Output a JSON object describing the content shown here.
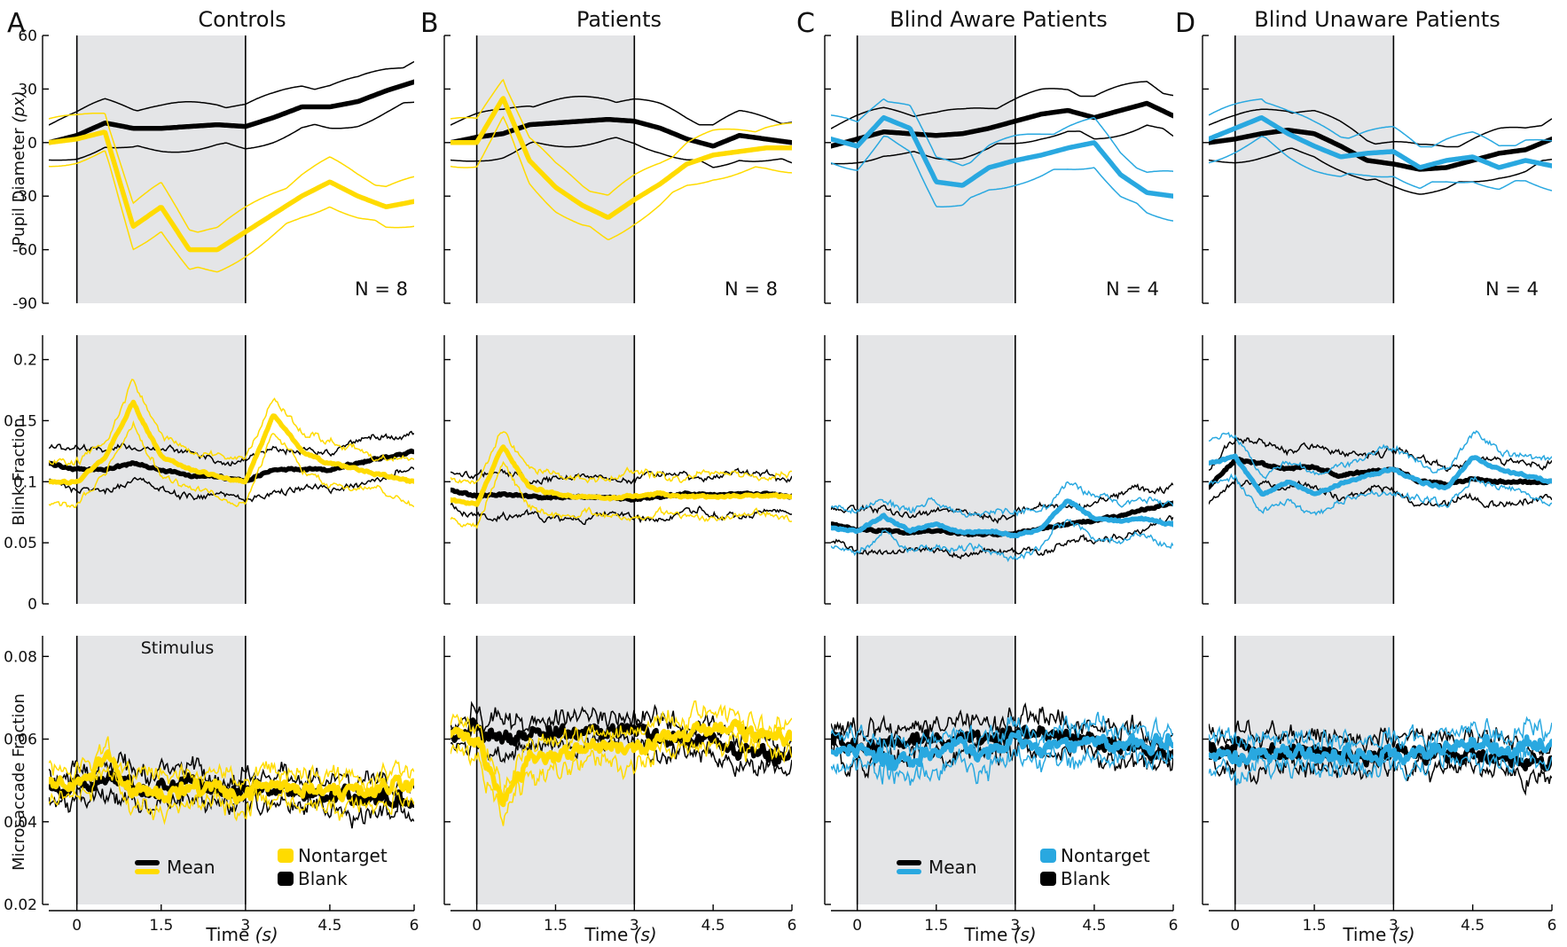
{
  "figure": {
    "colors": {
      "control": "#ffdb00",
      "patient": "#ffdb00",
      "aware": "#29a8e0",
      "unaware": "#29a8e0",
      "blank": "#000000",
      "stim_shade": "#e4e5e7"
    },
    "x_label": "Time",
    "x_unit": "(s)",
    "x_ticks": [
      "0",
      "1.5",
      "3",
      "4.5",
      "6"
    ],
    "stimulus_label": "Stimulus",
    "legend": {
      "mean": "Mean",
      "nontarget": "Nontarget",
      "blank": "Blank"
    }
  },
  "panels": [
    {
      "letter": "A",
      "title": "Controls",
      "n_label": "N = 8",
      "color": "#ffdb00"
    },
    {
      "letter": "B",
      "title": "Patients",
      "n_label": "N = 8",
      "color": "#ffdb00"
    },
    {
      "letter": "C",
      "title": "Blind Aware Patients",
      "n_label": "N = 4",
      "color": "#29a8e0"
    },
    {
      "letter": "D",
      "title": "Blind Unaware Patients",
      "n_label": "N = 4",
      "color": "#29a8e0"
    }
  ],
  "rows": [
    {
      "ylabel": "Pupil Diameter",
      "yunit": "(px)",
      "ylim": [
        -90,
        60
      ],
      "ticks": [
        "60",
        "30",
        "0",
        "-30",
        "-60",
        "-90"
      ]
    },
    {
      "ylabel": "Blink Fraction",
      "yunit": "",
      "ylim": [
        0,
        0.22
      ],
      "ticks": [
        "0.2",
        "0.15",
        "0.1",
        "0.05",
        "0"
      ]
    },
    {
      "ylabel": "Microsaccade Fraction",
      "yunit": "",
      "ylim": [
        0.02,
        0.085
      ],
      "ticks": [
        "0.08",
        "0.06",
        "0.04",
        "0.02"
      ]
    }
  ],
  "chart_data": [
    {
      "type": "line",
      "panel": "A",
      "metric": "Pupil Diameter (px)",
      "xlim": [
        -0.5,
        6
      ],
      "ylim": [
        -90,
        60
      ],
      "stimulus": [
        0,
        3
      ],
      "x": [
        -0.5,
        0,
        0.5,
        1,
        1.5,
        2,
        2.5,
        3,
        3.5,
        4,
        4.5,
        5,
        5.5,
        6
      ],
      "series": [
        {
          "name": "Nontarget",
          "values": [
            0,
            2,
            6,
            -47,
            -36,
            -60,
            -60,
            -50,
            -40,
            -30,
            -22,
            -30,
            -36,
            -33
          ]
        },
        {
          "name": "Blank",
          "values": [
            0,
            4,
            11,
            8,
            8,
            9,
            10,
            9,
            14,
            20,
            20,
            23,
            29,
            34
          ]
        }
      ]
    },
    {
      "type": "line",
      "panel": "A",
      "metric": "Blink Fraction",
      "xlim": [
        -0.5,
        6
      ],
      "ylim": [
        0,
        0.22
      ],
      "stimulus": [
        0,
        3
      ],
      "x": [
        -0.5,
        0,
        0.5,
        1,
        1.5,
        2,
        2.5,
        3,
        3.5,
        4,
        4.5,
        5,
        5.5,
        6
      ],
      "series": [
        {
          "name": "Nontarget",
          "values": [
            0.1,
            0.1,
            0.12,
            0.165,
            0.12,
            0.11,
            0.105,
            0.1,
            0.155,
            0.125,
            0.115,
            0.11,
            0.105,
            0.1
          ]
        },
        {
          "name": "Blank",
          "values": [
            0.115,
            0.11,
            0.11,
            0.115,
            0.11,
            0.105,
            0.105,
            0.1,
            0.11,
            0.11,
            0.11,
            0.115,
            0.12,
            0.125
          ]
        }
      ]
    },
    {
      "type": "line",
      "panel": "A",
      "metric": "Microsaccade Fraction",
      "xlim": [
        -0.5,
        6
      ],
      "ylim": [
        0.02,
        0.085
      ],
      "stimulus": [
        0,
        3
      ],
      "x": [
        -0.5,
        0,
        0.5,
        1,
        1.5,
        2,
        2.5,
        3,
        3.5,
        4,
        4.5,
        5,
        5.5,
        6
      ],
      "series": [
        {
          "name": "Nontarget",
          "values": [
            0.049,
            0.048,
            0.056,
            0.047,
            0.046,
            0.048,
            0.047,
            0.047,
            0.049,
            0.048,
            0.048,
            0.047,
            0.048,
            0.049
          ]
        },
        {
          "name": "Blank",
          "values": [
            0.049,
            0.049,
            0.05,
            0.049,
            0.048,
            0.049,
            0.048,
            0.048,
            0.048,
            0.047,
            0.047,
            0.046,
            0.046,
            0.045
          ]
        }
      ]
    },
    {
      "type": "line",
      "panel": "B",
      "metric": "Pupil Diameter (px)",
      "xlim": [
        -0.5,
        6
      ],
      "ylim": [
        -90,
        60
      ],
      "stimulus": [
        0,
        3
      ],
      "x": [
        -0.5,
        0,
        0.5,
        1,
        1.5,
        2,
        2.5,
        3,
        3.5,
        4,
        4.5,
        5,
        5.5,
        6
      ],
      "series": [
        {
          "name": "Nontarget",
          "values": [
            0,
            0,
            25,
            -10,
            -25,
            -35,
            -42,
            -32,
            -23,
            -12,
            -7,
            -5,
            -3,
            -3
          ]
        },
        {
          "name": "Blank",
          "values": [
            0,
            3,
            5,
            10,
            11,
            12,
            13,
            12,
            8,
            2,
            -2,
            4,
            2,
            0
          ]
        }
      ]
    },
    {
      "type": "line",
      "panel": "B",
      "metric": "Blink Fraction",
      "xlim": [
        -0.5,
        6
      ],
      "ylim": [
        0,
        0.22
      ],
      "stimulus": [
        0,
        3
      ],
      "x": [
        -0.5,
        0,
        0.5,
        1,
        1.5,
        2,
        2.5,
        3,
        3.5,
        4,
        4.5,
        5,
        5.5,
        6
      ],
      "series": [
        {
          "name": "Nontarget",
          "values": [
            0.085,
            0.082,
            0.13,
            0.095,
            0.09,
            0.088,
            0.086,
            0.088,
            0.09,
            0.088,
            0.087,
            0.088,
            0.089,
            0.088
          ]
        },
        {
          "name": "Blank",
          "values": [
            0.093,
            0.088,
            0.09,
            0.088,
            0.087,
            0.088,
            0.087,
            0.086,
            0.088,
            0.09,
            0.089,
            0.09,
            0.09,
            0.088
          ]
        }
      ]
    },
    {
      "type": "line",
      "panel": "B",
      "metric": "Microsaccade Fraction",
      "xlim": [
        -0.5,
        6
      ],
      "ylim": [
        0.02,
        0.085
      ],
      "stimulus": [
        0,
        3
      ],
      "x": [
        -0.5,
        0,
        0.5,
        1,
        1.5,
        2,
        2.5,
        3,
        3.5,
        4,
        4.5,
        5,
        5.5,
        6
      ],
      "series": [
        {
          "name": "Nontarget",
          "values": [
            0.06,
            0.061,
            0.045,
            0.056,
            0.057,
            0.058,
            0.058,
            0.058,
            0.06,
            0.061,
            0.062,
            0.062,
            0.061,
            0.06
          ]
        },
        {
          "name": "Blank",
          "values": [
            0.061,
            0.063,
            0.06,
            0.061,
            0.061,
            0.061,
            0.062,
            0.062,
            0.06,
            0.06,
            0.059,
            0.057,
            0.056,
            0.055
          ]
        }
      ]
    },
    {
      "type": "line",
      "panel": "C",
      "metric": "Pupil Diameter (px)",
      "xlim": [
        -0.5,
        6
      ],
      "ylim": [
        -90,
        60
      ],
      "stimulus": [
        0,
        3
      ],
      "x": [
        -0.5,
        0,
        0.5,
        1,
        1.5,
        2,
        2.5,
        3,
        3.5,
        4,
        4.5,
        5,
        5.5,
        6
      ],
      "series": [
        {
          "name": "Nontarget",
          "values": [
            2,
            -2,
            14,
            8,
            -22,
            -24,
            -14,
            -10,
            -7,
            -3,
            0,
            -18,
            -28,
            -30
          ]
        },
        {
          "name": "Blank",
          "values": [
            -2,
            2,
            6,
            5,
            4,
            5,
            8,
            12,
            16,
            18,
            14,
            18,
            22,
            15
          ]
        }
      ]
    },
    {
      "type": "line",
      "panel": "C",
      "metric": "Blink Fraction",
      "xlim": [
        -0.5,
        6
      ],
      "ylim": [
        0,
        0.22
      ],
      "stimulus": [
        0,
        3
      ],
      "x": [
        -0.5,
        0,
        0.5,
        1,
        1.5,
        2,
        2.5,
        3,
        3.5,
        4,
        4.5,
        5,
        5.5,
        6
      ],
      "series": [
        {
          "name": "Nontarget",
          "values": [
            0.062,
            0.06,
            0.072,
            0.06,
            0.065,
            0.058,
            0.06,
            0.056,
            0.062,
            0.085,
            0.07,
            0.068,
            0.07,
            0.065
          ]
        },
        {
          "name": "Blank",
          "values": [
            0.065,
            0.062,
            0.06,
            0.058,
            0.06,
            0.058,
            0.057,
            0.058,
            0.062,
            0.065,
            0.068,
            0.072,
            0.078,
            0.082
          ]
        }
      ]
    },
    {
      "type": "line",
      "panel": "C",
      "metric": "Microsaccade Fraction",
      "xlim": [
        -0.5,
        6
      ],
      "ylim": [
        0.02,
        0.085
      ],
      "stimulus": [
        0,
        3
      ],
      "x": [
        -0.5,
        0,
        0.5,
        1,
        1.5,
        2,
        2.5,
        3,
        3.5,
        4,
        4.5,
        5,
        5.5,
        6
      ],
      "series": [
        {
          "name": "Nontarget",
          "values": [
            0.056,
            0.057,
            0.055,
            0.054,
            0.057,
            0.058,
            0.057,
            0.06,
            0.058,
            0.059,
            0.06,
            0.058,
            0.059,
            0.06
          ]
        },
        {
          "name": "Blank",
          "values": [
            0.06,
            0.058,
            0.059,
            0.06,
            0.061,
            0.06,
            0.06,
            0.061,
            0.062,
            0.06,
            0.06,
            0.058,
            0.057,
            0.056
          ]
        }
      ]
    },
    {
      "type": "line",
      "panel": "D",
      "metric": "Pupil Diameter (px)",
      "xlim": [
        -0.5,
        6
      ],
      "ylim": [
        -90,
        60
      ],
      "stimulus": [
        0,
        3
      ],
      "x": [
        -0.5,
        0,
        0.5,
        1,
        1.5,
        2,
        2.5,
        3,
        3.5,
        4,
        4.5,
        5,
        5.5,
        6
      ],
      "series": [
        {
          "name": "Nontarget",
          "values": [
            2,
            8,
            14,
            5,
            -2,
            -8,
            -6,
            -5,
            -14,
            -10,
            -8,
            -14,
            -10,
            -13
          ]
        },
        {
          "name": "Blank",
          "values": [
            0,
            2,
            5,
            7,
            5,
            -2,
            -10,
            -12,
            -15,
            -14,
            -10,
            -6,
            -4,
            2
          ]
        }
      ]
    },
    {
      "type": "line",
      "panel": "D",
      "metric": "Blink Fraction",
      "xlim": [
        -0.5,
        6
      ],
      "ylim": [
        0,
        0.22
      ],
      "stimulus": [
        0,
        3
      ],
      "x": [
        -0.5,
        0,
        0.5,
        1,
        1.5,
        2,
        2.5,
        3,
        3.5,
        4,
        4.5,
        5,
        5.5,
        6
      ],
      "series": [
        {
          "name": "Nontarget",
          "values": [
            0.115,
            0.12,
            0.09,
            0.1,
            0.09,
            0.098,
            0.105,
            0.11,
            0.1,
            0.095,
            0.12,
            0.11,
            0.105,
            0.1
          ]
        },
        {
          "name": "Blank",
          "values": [
            0.095,
            0.118,
            0.115,
            0.11,
            0.112,
            0.105,
            0.108,
            0.11,
            0.1,
            0.098,
            0.102,
            0.1,
            0.1,
            0.1
          ]
        }
      ]
    },
    {
      "type": "line",
      "panel": "D",
      "metric": "Microsaccade Fraction",
      "xlim": [
        -0.5,
        6
      ],
      "ylim": [
        0.02,
        0.085
      ],
      "stimulus": [
        0,
        3
      ],
      "x": [
        -0.5,
        0,
        0.5,
        1,
        1.5,
        2,
        2.5,
        3,
        3.5,
        4,
        4.5,
        5,
        5.5,
        6
      ],
      "series": [
        {
          "name": "Nontarget",
          "values": [
            0.055,
            0.055,
            0.056,
            0.056,
            0.055,
            0.056,
            0.056,
            0.057,
            0.057,
            0.058,
            0.058,
            0.058,
            0.059,
            0.058
          ]
        },
        {
          "name": "Blank",
          "values": [
            0.058,
            0.057,
            0.057,
            0.056,
            0.057,
            0.056,
            0.056,
            0.057,
            0.057,
            0.056,
            0.056,
            0.056,
            0.055,
            0.055
          ]
        }
      ]
    }
  ]
}
